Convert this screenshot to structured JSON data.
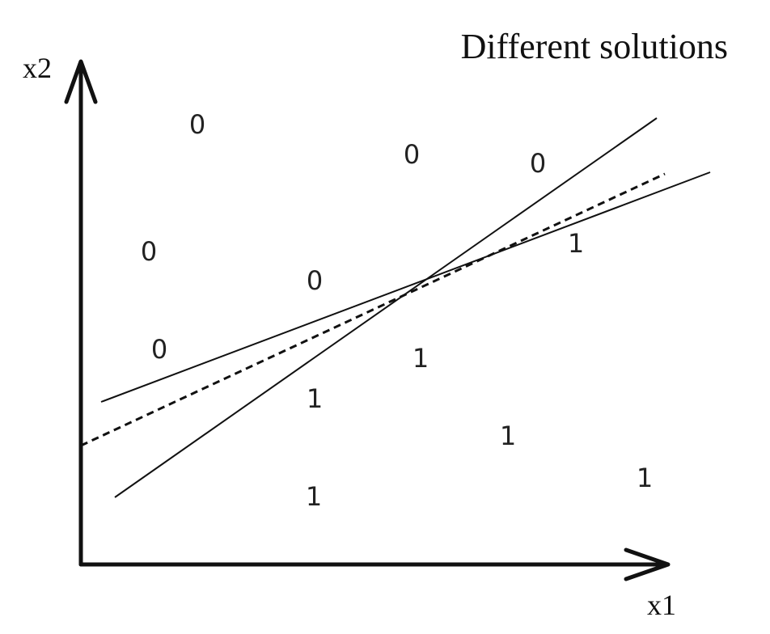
{
  "title": "Different solutions",
  "axes": {
    "x_label": "x1",
    "y_label": "x2"
  },
  "points": [
    {
      "label": "0",
      "class": 0
    },
    {
      "label": "0",
      "class": 0
    },
    {
      "label": "0",
      "class": 0
    },
    {
      "label": "0",
      "class": 0
    },
    {
      "label": "0",
      "class": 0
    },
    {
      "label": "0",
      "class": 0
    },
    {
      "label": "1",
      "class": 1
    },
    {
      "label": "1",
      "class": 1
    },
    {
      "label": "1",
      "class": 1
    },
    {
      "label": "1",
      "class": 1
    },
    {
      "label": "1",
      "class": 1
    },
    {
      "label": "1",
      "class": 1
    }
  ],
  "lines": [
    {
      "style": "solid"
    },
    {
      "style": "solid"
    },
    {
      "style": "dashed"
    }
  ],
  "colors": {
    "ink": "#111111",
    "points": "#222222",
    "background": "#ffffff"
  }
}
